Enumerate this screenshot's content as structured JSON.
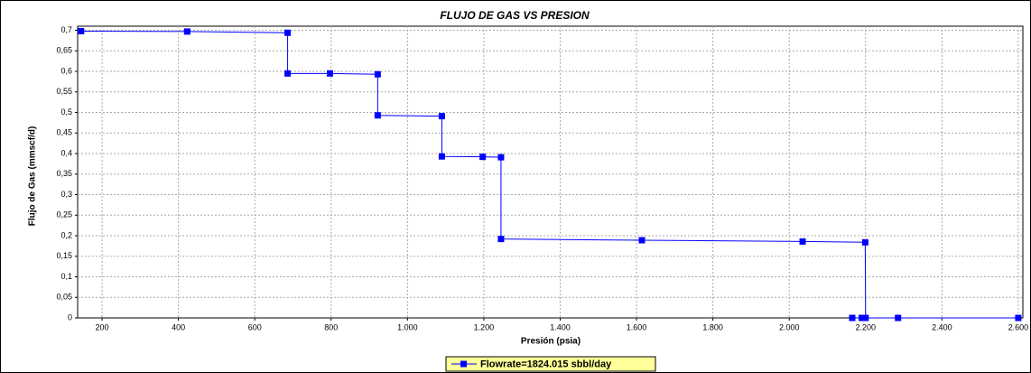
{
  "chart_data": {
    "type": "line",
    "title": "FLUJO DE GAS VS PRESION",
    "x_label": "Presión (psia)",
    "y_label": "Flujo de Gas (mmscf/d)",
    "x": [
      145,
      423,
      686,
      686,
      797,
      922,
      922,
      1090,
      1090,
      1197,
      1245,
      1245,
      1614,
      2035,
      2199,
      2200,
      2165,
      2190,
      2285,
      2600
    ],
    "series": [
      {
        "name": "Flowrate=1824.015 sbbl/day",
        "color": "#0000ff",
        "values": [
          0.698,
          0.697,
          0.694,
          0.595,
          0.595,
          0.593,
          0.493,
          0.491,
          0.393,
          0.392,
          0.391,
          0.192,
          0.189,
          0.186,
          0.184,
          0,
          0,
          0,
          0,
          0
        ]
      }
    ],
    "xlim": [
      136,
      2612
    ],
    "ylim": [
      0,
      0.71
    ],
    "xticks": [
      200,
      400,
      600,
      800,
      {
        "value": 1000,
        "label": "1.000"
      },
      {
        "value": 1200,
        "label": "1.200"
      },
      {
        "value": 1400,
        "label": "1.400"
      },
      {
        "value": 1600,
        "label": "1.600"
      },
      {
        "value": 1800,
        "label": "1.800"
      },
      {
        "value": 2000,
        "label": "2.000"
      },
      {
        "value": 2200,
        "label": "2.200"
      },
      {
        "value": 2400,
        "label": "2.400"
      },
      {
        "value": 2600,
        "label": "2.600"
      }
    ],
    "yticks": [
      0,
      {
        "value": 0.05,
        "label": "0,05"
      },
      {
        "value": 0.1,
        "label": "0,1"
      },
      {
        "value": 0.15,
        "label": "0,15"
      },
      {
        "value": 0.2,
        "label": "0,2"
      },
      {
        "value": 0.25,
        "label": "0,25"
      },
      {
        "value": 0.3,
        "label": "0,3"
      },
      {
        "value": 0.35,
        "label": "0,35"
      },
      {
        "value": 0.4,
        "label": "0,4"
      },
      {
        "value": 0.45,
        "label": "0,45"
      },
      {
        "value": 0.5,
        "label": "0,5"
      },
      {
        "value": 0.55,
        "label": "0,55"
      },
      {
        "value": 0.6,
        "label": "0,6"
      },
      {
        "value": 0.65,
        "label": "0,65"
      },
      {
        "value": 0.7,
        "label": "0,7"
      }
    ],
    "grid": true,
    "legend": "bottom"
  }
}
